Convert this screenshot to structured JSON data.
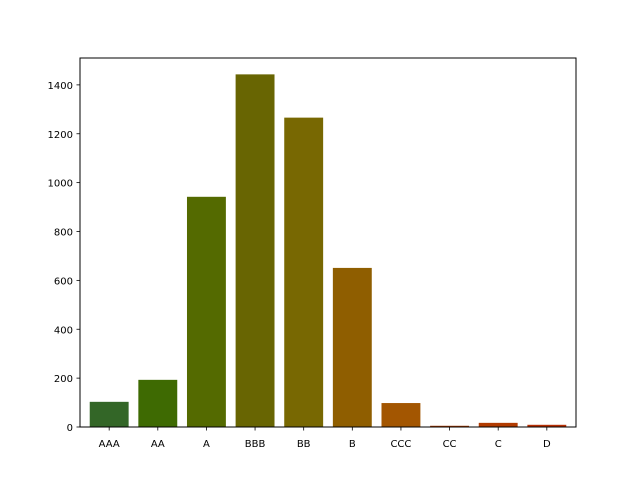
{
  "chart_data": {
    "type": "bar",
    "title": "",
    "xlabel": "",
    "ylabel": "",
    "categories": [
      "AAA",
      "AA",
      "A",
      "BBB",
      "BB",
      "B",
      "CCC",
      "CC",
      "C",
      "D"
    ],
    "values": [
      103,
      193,
      942,
      1443,
      1266,
      651,
      98,
      5,
      17,
      9
    ],
    "colors": [
      "#336627",
      "#3e6a02",
      "#546a00",
      "#686502",
      "#786802",
      "#8f5e00",
      "#a35601",
      "#a93a00",
      "#b13b01",
      "#b72f04"
    ],
    "ylim": [
      0,
      1510
    ],
    "yticks": [
      0,
      200,
      400,
      600,
      800,
      1000,
      1200,
      1400
    ],
    "grid": false,
    "legend": "none"
  }
}
